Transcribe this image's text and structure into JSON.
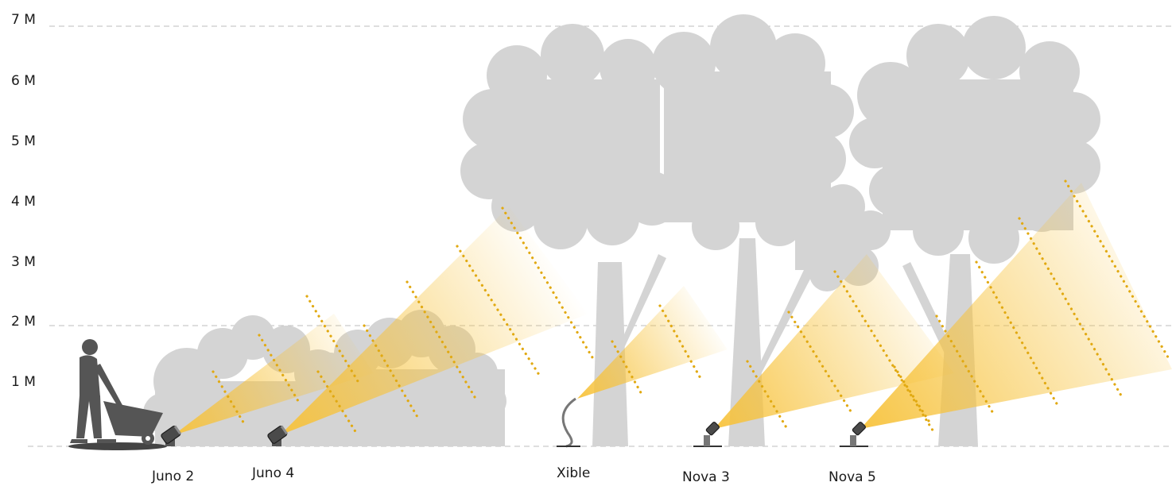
{
  "y_axis": {
    "labels": [
      "1 M",
      "2 M",
      "3 M",
      "4 M",
      "5 M",
      "6 M",
      "7 M"
    ]
  },
  "fixtures": [
    {
      "id": "juno2",
      "label": "Juno 2",
      "icon": "spotlight-icon"
    },
    {
      "id": "juno4",
      "label": "Juno 4",
      "icon": "spotlight-icon"
    },
    {
      "id": "xible",
      "label": "Xible",
      "icon": "flexible-arm-light-icon"
    },
    {
      "id": "nova3",
      "label": "Nova 3",
      "icon": "spike-spotlight-icon"
    },
    {
      "id": "nova5",
      "label": "Nova 5",
      "icon": "spike-spotlight-icon"
    }
  ],
  "colors": {
    "beam": "#f7c23a",
    "dots": "#e1a911",
    "foliage": "#d4d4d4",
    "person": "#555555",
    "grid": "#bdbdbd"
  }
}
